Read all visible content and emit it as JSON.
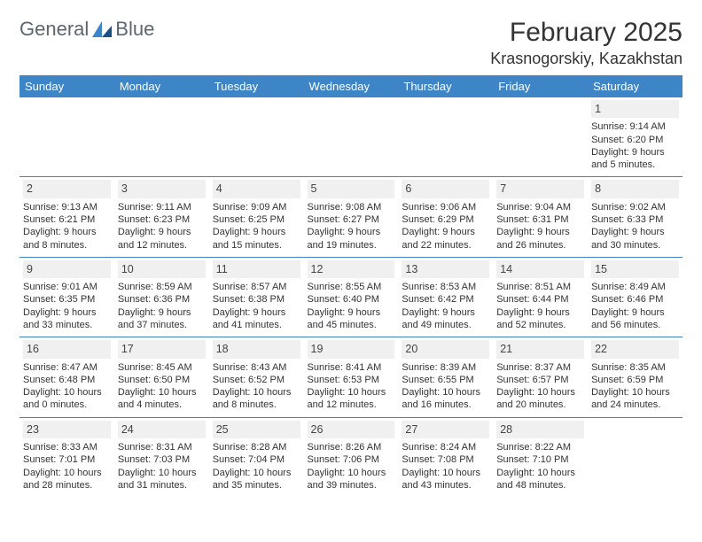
{
  "logo": {
    "left": "General",
    "right": "Blue",
    "text_color": "#5a6670",
    "accent": "#3d85c6"
  },
  "title": {
    "month": "February 2025",
    "location": "Krasnogorskiy, Kazakhstan"
  },
  "table": {
    "header_bg": "#3d85c6",
    "header_fg": "#ffffff",
    "border_color": "#3d85c6",
    "daynum_bg": "#f0f0f0",
    "columns": [
      "Sunday",
      "Monday",
      "Tuesday",
      "Wednesday",
      "Thursday",
      "Friday",
      "Saturday"
    ],
    "weeks": [
      [
        null,
        null,
        null,
        null,
        null,
        null,
        {
          "n": "1",
          "sr": "Sunrise: 9:14 AM",
          "ss": "Sunset: 6:20 PM",
          "d1": "Daylight: 9 hours",
          "d2": "and 5 minutes."
        }
      ],
      [
        {
          "n": "2",
          "sr": "Sunrise: 9:13 AM",
          "ss": "Sunset: 6:21 PM",
          "d1": "Daylight: 9 hours",
          "d2": "and 8 minutes."
        },
        {
          "n": "3",
          "sr": "Sunrise: 9:11 AM",
          "ss": "Sunset: 6:23 PM",
          "d1": "Daylight: 9 hours",
          "d2": "and 12 minutes."
        },
        {
          "n": "4",
          "sr": "Sunrise: 9:09 AM",
          "ss": "Sunset: 6:25 PM",
          "d1": "Daylight: 9 hours",
          "d2": "and 15 minutes."
        },
        {
          "n": "5",
          "sr": "Sunrise: 9:08 AM",
          "ss": "Sunset: 6:27 PM",
          "d1": "Daylight: 9 hours",
          "d2": "and 19 minutes."
        },
        {
          "n": "6",
          "sr": "Sunrise: 9:06 AM",
          "ss": "Sunset: 6:29 PM",
          "d1": "Daylight: 9 hours",
          "d2": "and 22 minutes."
        },
        {
          "n": "7",
          "sr": "Sunrise: 9:04 AM",
          "ss": "Sunset: 6:31 PM",
          "d1": "Daylight: 9 hours",
          "d2": "and 26 minutes."
        },
        {
          "n": "8",
          "sr": "Sunrise: 9:02 AM",
          "ss": "Sunset: 6:33 PM",
          "d1": "Daylight: 9 hours",
          "d2": "and 30 minutes."
        }
      ],
      [
        {
          "n": "9",
          "sr": "Sunrise: 9:01 AM",
          "ss": "Sunset: 6:35 PM",
          "d1": "Daylight: 9 hours",
          "d2": "and 33 minutes."
        },
        {
          "n": "10",
          "sr": "Sunrise: 8:59 AM",
          "ss": "Sunset: 6:36 PM",
          "d1": "Daylight: 9 hours",
          "d2": "and 37 minutes."
        },
        {
          "n": "11",
          "sr": "Sunrise: 8:57 AM",
          "ss": "Sunset: 6:38 PM",
          "d1": "Daylight: 9 hours",
          "d2": "and 41 minutes."
        },
        {
          "n": "12",
          "sr": "Sunrise: 8:55 AM",
          "ss": "Sunset: 6:40 PM",
          "d1": "Daylight: 9 hours",
          "d2": "and 45 minutes."
        },
        {
          "n": "13",
          "sr": "Sunrise: 8:53 AM",
          "ss": "Sunset: 6:42 PM",
          "d1": "Daylight: 9 hours",
          "d2": "and 49 minutes."
        },
        {
          "n": "14",
          "sr": "Sunrise: 8:51 AM",
          "ss": "Sunset: 6:44 PM",
          "d1": "Daylight: 9 hours",
          "d2": "and 52 minutes."
        },
        {
          "n": "15",
          "sr": "Sunrise: 8:49 AM",
          "ss": "Sunset: 6:46 PM",
          "d1": "Daylight: 9 hours",
          "d2": "and 56 minutes."
        }
      ],
      [
        {
          "n": "16",
          "sr": "Sunrise: 8:47 AM",
          "ss": "Sunset: 6:48 PM",
          "d1": "Daylight: 10 hours",
          "d2": "and 0 minutes."
        },
        {
          "n": "17",
          "sr": "Sunrise: 8:45 AM",
          "ss": "Sunset: 6:50 PM",
          "d1": "Daylight: 10 hours",
          "d2": "and 4 minutes."
        },
        {
          "n": "18",
          "sr": "Sunrise: 8:43 AM",
          "ss": "Sunset: 6:52 PM",
          "d1": "Daylight: 10 hours",
          "d2": "and 8 minutes."
        },
        {
          "n": "19",
          "sr": "Sunrise: 8:41 AM",
          "ss": "Sunset: 6:53 PM",
          "d1": "Daylight: 10 hours",
          "d2": "and 12 minutes."
        },
        {
          "n": "20",
          "sr": "Sunrise: 8:39 AM",
          "ss": "Sunset: 6:55 PM",
          "d1": "Daylight: 10 hours",
          "d2": "and 16 minutes."
        },
        {
          "n": "21",
          "sr": "Sunrise: 8:37 AM",
          "ss": "Sunset: 6:57 PM",
          "d1": "Daylight: 10 hours",
          "d2": "and 20 minutes."
        },
        {
          "n": "22",
          "sr": "Sunrise: 8:35 AM",
          "ss": "Sunset: 6:59 PM",
          "d1": "Daylight: 10 hours",
          "d2": "and 24 minutes."
        }
      ],
      [
        {
          "n": "23",
          "sr": "Sunrise: 8:33 AM",
          "ss": "Sunset: 7:01 PM",
          "d1": "Daylight: 10 hours",
          "d2": "and 28 minutes."
        },
        {
          "n": "24",
          "sr": "Sunrise: 8:31 AM",
          "ss": "Sunset: 7:03 PM",
          "d1": "Daylight: 10 hours",
          "d2": "and 31 minutes."
        },
        {
          "n": "25",
          "sr": "Sunrise: 8:28 AM",
          "ss": "Sunset: 7:04 PM",
          "d1": "Daylight: 10 hours",
          "d2": "and 35 minutes."
        },
        {
          "n": "26",
          "sr": "Sunrise: 8:26 AM",
          "ss": "Sunset: 7:06 PM",
          "d1": "Daylight: 10 hours",
          "d2": "and 39 minutes."
        },
        {
          "n": "27",
          "sr": "Sunrise: 8:24 AM",
          "ss": "Sunset: 7:08 PM",
          "d1": "Daylight: 10 hours",
          "d2": "and 43 minutes."
        },
        {
          "n": "28",
          "sr": "Sunrise: 8:22 AM",
          "ss": "Sunset: 7:10 PM",
          "d1": "Daylight: 10 hours",
          "d2": "and 48 minutes."
        },
        null
      ]
    ]
  }
}
